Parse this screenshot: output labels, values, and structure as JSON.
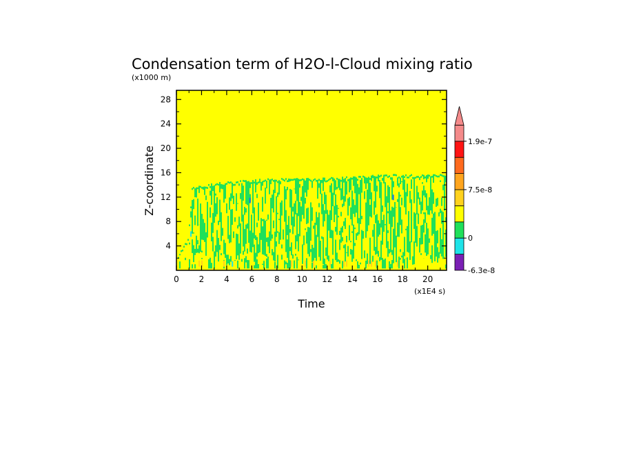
{
  "chart_data": {
    "type": "heatmap",
    "title": "Condensation term of H2O-l-Cloud mixing ratio",
    "xlabel": "Time",
    "ylabel": "Z-coordinate",
    "x_unit": "(x1E4 s)",
    "y_unit": "(x1000 m)",
    "x_ticks": [
      "0",
      "2",
      "4",
      "6",
      "8",
      "10",
      "12",
      "14",
      "16",
      "18",
      "20"
    ],
    "y_ticks": [
      "4",
      "8",
      "12",
      "16",
      "20",
      "24",
      "28"
    ],
    "xlim": [
      0,
      21.5
    ],
    "ylim": [
      0,
      29.5
    ],
    "colorbar": {
      "colors": [
        "#7a1fb4",
        "#1ee3e8",
        "#1fe05a",
        "#ffff00",
        "#ffd21e",
        "#ffa51e",
        "#ff6a1e",
        "#ff1414",
        "#f48a8a"
      ],
      "labels": [
        {
          "value": -6.3e-08,
          "text": "-6.3e-8"
        },
        {
          "value": 0,
          "text": "0"
        },
        {
          "value": 7.5e-08,
          "text": "7.5e-8"
        },
        {
          "value": 1.9e-07,
          "text": "1.9e-7"
        }
      ],
      "extend": "max"
    },
    "regions": {
      "background_level": "0",
      "cloud_top_km": [
        {
          "t": 0.0,
          "z": 2
        },
        {
          "t": 0.9,
          "z": 5
        },
        {
          "t": 1.2,
          "z": 13.5
        },
        {
          "t": 3.5,
          "z": 14.3
        },
        {
          "t": 7.0,
          "z": 14.8
        },
        {
          "t": 12.0,
          "z": 15.0
        },
        {
          "t": 17.0,
          "z": 15.5
        },
        {
          "t": 21.5,
          "z": 15.5
        }
      ]
    }
  }
}
